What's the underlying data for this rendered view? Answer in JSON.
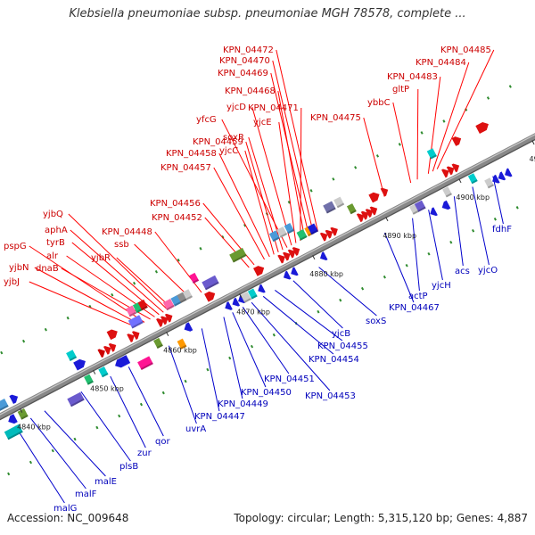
{
  "title": "Klebsiella pneumoniae subsp. pneumoniae MGH 78578, complete ...",
  "footer": {
    "accession": "Accession: NC_009648",
    "summary": "Topology: circular; Length: 5,315,120 bp; Genes: 4,887"
  },
  "colors": {
    "backbone": "#888888",
    "forward_label": "#cc0000",
    "reverse_label": "#0000bb",
    "tick": "#2e8b2e"
  },
  "ticks": [
    {
      "kbp": 4840,
      "label": "4840 kbp"
    },
    {
      "kbp": 4850,
      "label": "4850 kbp"
    },
    {
      "kbp": 4860,
      "label": "4860 kbp"
    },
    {
      "kbp": 4870,
      "label": "4870 kbp"
    },
    {
      "kbp": 4880,
      "label": "4880 kbp"
    },
    {
      "kbp": 4890,
      "label": "4890 kbp"
    },
    {
      "kbp": 4900,
      "label": "4900 kbp"
    },
    {
      "kbp": 4910,
      "label": "4910 kbp"
    }
  ],
  "forward_labels": [
    {
      "name": "yjbJ",
      "kbp": 4857.0
    },
    {
      "name": "yjbN",
      "kbp": 4857.6
    },
    {
      "name": "pspG",
      "kbp": 4858.2
    },
    {
      "name": "dnaB",
      "kbp": 4859.0
    },
    {
      "name": "alr",
      "kbp": 4859.6
    },
    {
      "name": "tyrB",
      "kbp": 4860.2
    },
    {
      "name": "aphA",
      "kbp": 4860.8
    },
    {
      "name": "yjbQ",
      "kbp": 4861.4
    },
    {
      "name": "yjbR",
      "kbp": 4861.9
    },
    {
      "name": "ssb",
      "kbp": 4864.5
    },
    {
      "name": "KPN_04448",
      "kbp": 4866.0
    },
    {
      "name": "KPN_04452",
      "kbp": 4872.5
    },
    {
      "name": "KPN_04456",
      "kbp": 4873.2
    },
    {
      "name": "KPN_04457",
      "kbp": 4874.6
    },
    {
      "name": "KPN_04458",
      "kbp": 4875.3
    },
    {
      "name": "yjcC",
      "kbp": 4875.9
    },
    {
      "name": "KPN_04459",
      "kbp": 4876.5
    },
    {
      "name": "soxR",
      "kbp": 4877.1
    },
    {
      "name": "yfcG",
      "kbp": 4877.7
    },
    {
      "name": "yjcD",
      "kbp": 4878.3
    },
    {
      "name": "yjcE",
      "kbp": 4878.9
    },
    {
      "name": "KPN_04471",
      "kbp": 4879.5
    },
    {
      "name": "KPN_04468",
      "kbp": 4880.1
    },
    {
      "name": "KPN_04469",
      "kbp": 4880.7
    },
    {
      "name": "KPN_04470",
      "kbp": 4881.3
    },
    {
      "name": "KPN_04472",
      "kbp": 4881.9
    },
    {
      "name": "KPN_04475",
      "kbp": 4891.0
    },
    {
      "name": "ybbC",
      "kbp": 4894.6
    },
    {
      "name": "gltP",
      "kbp": 4895.5
    },
    {
      "name": "KPN_04483",
      "kbp": 4897.0
    },
    {
      "name": "KPN_04484",
      "kbp": 4897.6
    },
    {
      "name": "KPN_04485",
      "kbp": 4898.2
    }
  ],
  "reverse_labels": [
    {
      "name": "malG",
      "kbp": 4838.5
    },
    {
      "name": "malF",
      "kbp": 4840.6
    },
    {
      "name": "malE",
      "kbp": 4842.5
    },
    {
      "name": "plsB",
      "kbp": 4847.5
    },
    {
      "name": "zur",
      "kbp": 4851.5
    },
    {
      "name": "qor",
      "kbp": 4854.0
    },
    {
      "name": "uvrA",
      "kbp": 4859.5
    },
    {
      "name": "KPN_04447",
      "kbp": 4864.0
    },
    {
      "name": "KPN_04449",
      "kbp": 4867.0
    },
    {
      "name": "KPN_04450",
      "kbp": 4868.2
    },
    {
      "name": "KPN_04451",
      "kbp": 4869.6
    },
    {
      "name": "KPN_04453",
      "kbp": 4870.8
    },
    {
      "name": "KPN_04454",
      "kbp": 4872.4
    },
    {
      "name": "KPN_04455",
      "kbp": 4874.0
    },
    {
      "name": "yjcB",
      "kbp": 4876.5
    },
    {
      "name": "soxS",
      "kbp": 4880.0
    },
    {
      "name": "KPN_04467",
      "kbp": 4889.0
    },
    {
      "name": "actP",
      "kbp": 4892.8
    },
    {
      "name": "yjcH",
      "kbp": 4895.0
    },
    {
      "name": "acs",
      "kbp": 4898.5
    },
    {
      "name": "yjcO",
      "kbp": 4901.0
    },
    {
      "name": "fdhF",
      "kbp": 4903.8
    }
  ],
  "forward_features": [
    {
      "kbp": 4837.0,
      "len": 0.8,
      "row": 1,
      "color": "#00cccc",
      "shape": "box"
    },
    {
      "kbp": 4838.2,
      "len": 1.4,
      "row": 1,
      "color": "#4a9ad8",
      "shape": "box"
    },
    {
      "kbp": 4840.0,
      "len": 0.9,
      "row": 1,
      "color": "#1a1ad8",
      "shape": "arrow"
    },
    {
      "kbp": 4848.5,
      "len": 0.9,
      "row": 2,
      "color": "#00cccc",
      "shape": "box"
    },
    {
      "kbp": 4849.0,
      "len": 1.4,
      "row": 1,
      "color": "#1a1ad8",
      "shape": "arrow"
    },
    {
      "kbp": 4852.0,
      "len": 0.4,
      "row": 1,
      "color": "#cc0000",
      "shape": "arrow"
    },
    {
      "kbp": 4852.8,
      "len": 0.5,
      "row": 1,
      "color": "#dd1010",
      "shape": "arrow"
    },
    {
      "kbp": 4853.5,
      "len": 0.4,
      "row": 1,
      "color": "#dd1010",
      "shape": "arrow"
    },
    {
      "kbp": 4854.2,
      "len": 1.2,
      "row": 2,
      "color": "#dd1010",
      "shape": "arrow"
    },
    {
      "kbp": 4856.0,
      "len": 0.5,
      "row": 1,
      "color": "#dd1010",
      "shape": "arrow"
    },
    {
      "kbp": 4856.7,
      "len": 0.5,
      "row": 1,
      "color": "#dd1010",
      "shape": "arrow"
    },
    {
      "kbp": 4857.3,
      "len": 1.5,
      "row": 2,
      "color": "#7070ff",
      "shape": "box"
    },
    {
      "kbp": 4857.4,
      "len": 0.9,
      "row": 3,
      "color": "#ff66aa",
      "shape": "box"
    },
    {
      "kbp": 4858.3,
      "len": 0.8,
      "row": 3,
      "color": "#20c070",
      "shape": "box"
    },
    {
      "kbp": 4859.0,
      "len": 0.8,
      "row": 3,
      "color": "#dd1010",
      "shape": "box"
    },
    {
      "kbp": 4860.0,
      "len": 0.5,
      "row": 1,
      "color": "#dd1010",
      "shape": "arrow"
    },
    {
      "kbp": 4860.6,
      "len": 0.5,
      "row": 1,
      "color": "#dd1010",
      "shape": "arrow"
    },
    {
      "kbp": 4861.2,
      "len": 0.5,
      "row": 1,
      "color": "#dd1010",
      "shape": "arrow"
    },
    {
      "kbp": 4861.8,
      "len": 1.0,
      "row": 2,
      "color": "#ff66aa",
      "shape": "box"
    },
    {
      "kbp": 4862.8,
      "len": 0.9,
      "row": 2,
      "color": "#4a9ad8",
      "shape": "box"
    },
    {
      "kbp": 4863.6,
      "len": 0.8,
      "row": 2,
      "color": "#8c8c8c",
      "shape": "box"
    },
    {
      "kbp": 4864.4,
      "len": 0.4,
      "row": 2,
      "color": "#cccccc",
      "shape": "box"
    },
    {
      "kbp": 4866.0,
      "len": 0.6,
      "row": 3,
      "color": "#ff1493",
      "shape": "box"
    },
    {
      "kbp": 4866.8,
      "len": 1.2,
      "row": 1,
      "color": "#dd1010",
      "shape": "arrow"
    },
    {
      "kbp": 4867.5,
      "len": 1.8,
      "row": 2,
      "color": "#6a5acd",
      "shape": "box"
    },
    {
      "kbp": 4872.0,
      "len": 1.8,
      "row": 3,
      "color": "#6a9a30",
      "shape": "box"
    },
    {
      "kbp": 4873.5,
      "len": 1.2,
      "row": 1,
      "color": "#dd1010",
      "shape": "arrow"
    },
    {
      "kbp": 4876.6,
      "len": 0.5,
      "row": 1,
      "color": "#dd1010",
      "shape": "arrow"
    },
    {
      "kbp": 4877.3,
      "len": 0.5,
      "row": 1,
      "color": "#dd1010",
      "shape": "arrow"
    },
    {
      "kbp": 4878.0,
      "len": 0.5,
      "row": 1,
      "color": "#dd1010",
      "shape": "arrow"
    },
    {
      "kbp": 4878.6,
      "len": 0.5,
      "row": 1,
      "color": "#dd1010",
      "shape": "arrow"
    },
    {
      "kbp": 4877.0,
      "len": 0.9,
      "row": 3,
      "color": "#4a9ad8",
      "shape": "box"
    },
    {
      "kbp": 4878.0,
      "len": 0.9,
      "row": 3,
      "color": "#cccccc",
      "shape": "box"
    },
    {
      "kbp": 4879.0,
      "len": 0.8,
      "row": 3,
      "color": "#4a9ad8",
      "shape": "box"
    },
    {
      "kbp": 4880.0,
      "len": 0.9,
      "row": 2,
      "color": "#20c070",
      "shape": "box"
    },
    {
      "kbp": 4881.0,
      "len": 0.4,
      "row": 2,
      "color": "#ff9900",
      "shape": "box"
    },
    {
      "kbp": 4881.5,
      "len": 0.9,
      "row": 2,
      "color": "#1a1ad8",
      "shape": "box"
    },
    {
      "kbp": 4882.4,
      "len": 0.5,
      "row": 1,
      "color": "#dd1010",
      "shape": "arrow"
    },
    {
      "kbp": 4883.1,
      "len": 0.5,
      "row": 1,
      "color": "#dd1010",
      "shape": "arrow"
    },
    {
      "kbp": 4883.8,
      "len": 0.5,
      "row": 1,
      "color": "#dd1010",
      "shape": "arrow"
    },
    {
      "kbp": 4884.5,
      "len": 1.2,
      "row": 3,
      "color": "#7070aa",
      "shape": "box"
    },
    {
      "kbp": 4885.8,
      "len": 0.9,
      "row": 3,
      "color": "#cccccc",
      "shape": "box"
    },
    {
      "kbp": 4886.8,
      "len": 0.6,
      "row": 2,
      "color": "#6a9a30",
      "shape": "box"
    },
    {
      "kbp": 4887.4,
      "len": 0.5,
      "row": 1,
      "color": "#dd1010",
      "shape": "arrow"
    },
    {
      "kbp": 4888.0,
      "len": 0.5,
      "row": 1,
      "color": "#dd1010",
      "shape": "arrow"
    },
    {
      "kbp": 4888.6,
      "len": 0.5,
      "row": 1,
      "color": "#dd1010",
      "shape": "arrow"
    },
    {
      "kbp": 4889.2,
      "len": 0.5,
      "row": 1,
      "color": "#dd1010",
      "shape": "arrow"
    },
    {
      "kbp": 4890.0,
      "len": 1.2,
      "row": 2,
      "color": "#dd1010",
      "shape": "arrow"
    },
    {
      "kbp": 4891.4,
      "len": 0.6,
      "row": 2,
      "color": "#dd1010",
      "shape": "arrow"
    },
    {
      "kbp": 4898.5,
      "len": 0.8,
      "row": 3,
      "color": "#00cccc",
      "shape": "box"
    },
    {
      "kbp": 4899.0,
      "len": 0.5,
      "row": 1,
      "color": "#dd1010",
      "shape": "arrow"
    },
    {
      "kbp": 4899.7,
      "len": 0.5,
      "row": 1,
      "color": "#dd1010",
      "shape": "arrow"
    },
    {
      "kbp": 4900.4,
      "len": 0.5,
      "row": 1,
      "color": "#dd1010",
      "shape": "arrow"
    },
    {
      "kbp": 4902.0,
      "len": 1.0,
      "row": 3,
      "color": "#dd1010",
      "shape": "arrow"
    },
    {
      "kbp": 4905.5,
      "len": 1.5,
      "row": 3,
      "color": "#dd1010",
      "shape": "arrow"
    }
  ],
  "reverse_features": [
    {
      "kbp": 4838.0,
      "len": 2.0,
      "row": 2,
      "color": "#00bbbb",
      "shape": "box"
    },
    {
      "kbp": 4838.5,
      "len": 1.0,
      "row": 1,
      "color": "#1a1ad8",
      "shape": "arrow"
    },
    {
      "kbp": 4840.0,
      "len": 0.9,
      "row": 1,
      "color": "#6a9a30",
      "shape": "box"
    },
    {
      "kbp": 4846.5,
      "len": 1.8,
      "row": 2,
      "color": "#6a5acd",
      "shape": "box"
    },
    {
      "kbp": 4849.0,
      "len": 0.6,
      "row": 1,
      "color": "#20c070",
      "shape": "box"
    },
    {
      "kbp": 4851.0,
      "len": 0.8,
      "row": 1,
      "color": "#00cccc",
      "shape": "box"
    },
    {
      "kbp": 4853.5,
      "len": 1.8,
      "row": 1,
      "color": "#1a1ad8",
      "shape": "arrow"
    },
    {
      "kbp": 4856.0,
      "len": 1.6,
      "row": 2,
      "color": "#ff1493",
      "shape": "box"
    },
    {
      "kbp": 4858.5,
      "len": 0.7,
      "row": 1,
      "color": "#6a9a30",
      "shape": "box"
    },
    {
      "kbp": 4861.0,
      "len": 0.4,
      "row": 2,
      "color": "#ff9900",
      "shape": "box"
    },
    {
      "kbp": 4862.5,
      "len": 0.9,
      "row": 1,
      "color": "#1a1ad8",
      "shape": "arrow"
    },
    {
      "kbp": 4868.0,
      "len": 0.5,
      "row": 1,
      "color": "#1a1ad8",
      "shape": "arrow"
    },
    {
      "kbp": 4869.0,
      "len": 0.5,
      "row": 1,
      "color": "#1a1ad8",
      "shape": "arrow"
    },
    {
      "kbp": 4869.8,
      "len": 0.5,
      "row": 1,
      "color": "#1a1ad8",
      "shape": "arrow"
    },
    {
      "kbp": 4870.5,
      "len": 0.9,
      "row": 1,
      "color": "#cccccc",
      "shape": "box"
    },
    {
      "kbp": 4871.4,
      "len": 0.7,
      "row": 1,
      "color": "#00cccc",
      "shape": "box"
    },
    {
      "kbp": 4872.5,
      "len": 0.5,
      "row": 1,
      "color": "#1a1ad8",
      "shape": "arrow"
    },
    {
      "kbp": 4876.0,
      "len": 0.4,
      "row": 1,
      "color": "#1a1ad8",
      "shape": "arrow"
    },
    {
      "kbp": 4877.0,
      "len": 0.4,
      "row": 1,
      "color": "#1a1ad8",
      "shape": "arrow"
    },
    {
      "kbp": 4881.0,
      "len": 0.4,
      "row": 1,
      "color": "#1a1ad8",
      "shape": "arrow"
    },
    {
      "kbp": 4893.5,
      "len": 0.8,
      "row": 1,
      "color": "#cccccc",
      "shape": "box"
    },
    {
      "kbp": 4894.3,
      "len": 1.0,
      "row": 1,
      "color": "#6a5acd",
      "shape": "box"
    },
    {
      "kbp": 4895.3,
      "len": 0.7,
      "row": 2,
      "color": "#1a1ad8",
      "shape": "arrow"
    },
    {
      "kbp": 4897.0,
      "len": 0.9,
      "row": 2,
      "color": "#1a1ad8",
      "shape": "arrow"
    },
    {
      "kbp": 4898.0,
      "len": 0.6,
      "row": 1,
      "color": "#cccccc",
      "shape": "box"
    },
    {
      "kbp": 4901.5,
      "len": 0.6,
      "row": 1,
      "color": "#00cccc",
      "shape": "box"
    },
    {
      "kbp": 4903.0,
      "len": 0.6,
      "row": 2,
      "color": "#cccccc",
      "shape": "box"
    },
    {
      "kbp": 4903.8,
      "len": 0.6,
      "row": 2,
      "color": "#1a1ad8",
      "shape": "arrow"
    },
    {
      "kbp": 4904.6,
      "len": 0.6,
      "row": 2,
      "color": "#1a1ad8",
      "shape": "arrow"
    },
    {
      "kbp": 4905.5,
      "len": 0.6,
      "row": 2,
      "color": "#1a1ad8",
      "shape": "arrow"
    }
  ]
}
